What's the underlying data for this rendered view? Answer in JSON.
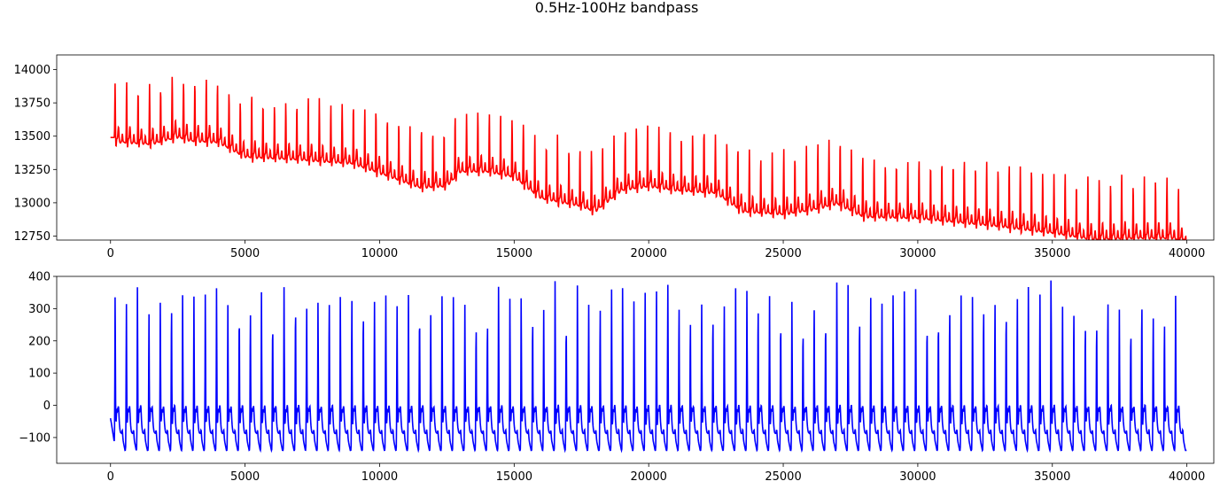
{
  "figure": {
    "title": "0.5Hz-100Hz bandpass"
  },
  "chart_data": [
    {
      "type": "line",
      "title": "",
      "xlabel": "",
      "ylabel": "",
      "color": "#ff0000",
      "xlim": [
        -2000,
        41000
      ],
      "ylim": [
        12720,
        14110
      ],
      "xticks": [
        0,
        5000,
        10000,
        15000,
        20000,
        25000,
        30000,
        35000,
        40000
      ],
      "yticks": [
        12750,
        13000,
        13250,
        13500,
        13750,
        14000
      ],
      "xtick_labels": [
        "0",
        "5000",
        "10000",
        "15000",
        "20000",
        "25000",
        "30000",
        "35000",
        "40000"
      ],
      "ytick_labels": [
        "12750",
        "13000",
        "13250",
        "13500",
        "13750",
        "14000"
      ],
      "grid": false,
      "signal": {
        "n_samples": 40000,
        "first_beat": 170,
        "beat_interval": 420,
        "r_peak_height": 430,
        "t_wave_height": 100,
        "baseline_points": [
          [
            0,
            13560
          ],
          [
            500,
            13560
          ],
          [
            1500,
            13545
          ],
          [
            2500,
            13600
          ],
          [
            3000,
            13570
          ],
          [
            4000,
            13560
          ],
          [
            5000,
            13450
          ],
          [
            7000,
            13430
          ],
          [
            9000,
            13400
          ],
          [
            10000,
            13330
          ],
          [
            11500,
            13220
          ],
          [
            12500,
            13230
          ],
          [
            13000,
            13340
          ],
          [
            14000,
            13340
          ],
          [
            15000,
            13300
          ],
          [
            16000,
            13140
          ],
          [
            17500,
            13080
          ],
          [
            18000,
            13040
          ],
          [
            19000,
            13200
          ],
          [
            20000,
            13230
          ],
          [
            21000,
            13200
          ],
          [
            22500,
            13180
          ],
          [
            23500,
            13040
          ],
          [
            25000,
            13020
          ],
          [
            26000,
            13050
          ],
          [
            27000,
            13100
          ],
          [
            28000,
            13000
          ],
          [
            30000,
            12990
          ],
          [
            33000,
            12930
          ],
          [
            35000,
            12880
          ],
          [
            36500,
            12830
          ],
          [
            38000,
            12840
          ],
          [
            39500,
            12840
          ],
          [
            40000,
            12790
          ]
        ]
      },
      "series": [
        {
          "values_source": "synthetic ECG trace, 40000 samples"
        }
      ]
    },
    {
      "type": "line",
      "title": "",
      "xlabel": "",
      "ylabel": "",
      "color": "#0000ff",
      "xlim": [
        -2000,
        41000
      ],
      "ylim": [
        -180,
        400
      ],
      "xticks": [
        0,
        5000,
        10000,
        15000,
        20000,
        25000,
        30000,
        35000,
        40000
      ],
      "yticks": [
        -100,
        0,
        100,
        200,
        300,
        400
      ],
      "xtick_labels": [
        "0",
        "5000",
        "10000",
        "15000",
        "20000",
        "25000",
        "30000",
        "35000",
        "40000"
      ],
      "ytick_labels": [
        "−100",
        "0",
        "100",
        "200",
        "300",
        "400"
      ],
      "grid": false,
      "signal": {
        "n_samples": 40000,
        "first_beat": 170,
        "beat_interval": 420,
        "r_peak_height": 355,
        "t_wave_height": 35,
        "trough": -140
      },
      "series": [
        {
          "values_source": "bandpass-filtered ECG trace, 40000 samples"
        }
      ]
    }
  ]
}
